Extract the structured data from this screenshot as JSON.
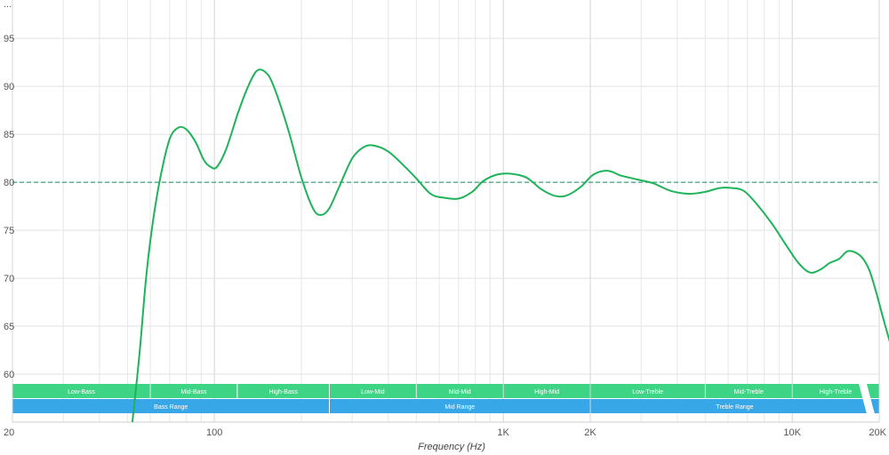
{
  "chart_data": {
    "type": "line",
    "title": "",
    "xlabel": "Frequency (Hz)",
    "ylabel": "",
    "x_scale": "log",
    "xlim": [
      20,
      20000
    ],
    "ylim": [
      55,
      99
    ],
    "grid": true,
    "x_ticks": [
      {
        "value": 20,
        "label": "20"
      },
      {
        "value": 100,
        "label": "100"
      },
      {
        "value": 1000,
        "label": "1K"
      },
      {
        "value": 2000,
        "label": "2K"
      },
      {
        "value": 10000,
        "label": "10K"
      },
      {
        "value": 20000,
        "label": "20K"
      }
    ],
    "y_ticks": [
      {
        "value": 60,
        "label": "60"
      },
      {
        "value": 65,
        "label": "65"
      },
      {
        "value": 70,
        "label": "70"
      },
      {
        "value": 75,
        "label": "75"
      },
      {
        "value": 80,
        "label": "80"
      },
      {
        "value": 85,
        "label": "85"
      },
      {
        "value": 90,
        "label": "90"
      },
      {
        "value": 95,
        "label": "95"
      }
    ],
    "y_top_label": "...",
    "reference_line": {
      "value": 80,
      "color": "#4a9a80"
    },
    "series": [
      {
        "color": "#1fb35a",
        "points": [
          [
            52,
            55
          ],
          [
            55,
            62
          ],
          [
            58,
            70
          ],
          [
            61,
            75.5
          ],
          [
            65,
            80.5
          ],
          [
            70,
            84.5
          ],
          [
            75,
            85.7
          ],
          [
            80,
            85.5
          ],
          [
            86,
            84.2
          ],
          [
            92,
            82.3
          ],
          [
            97,
            81.6
          ],
          [
            102,
            81.6
          ],
          [
            110,
            83.5
          ],
          [
            120,
            87
          ],
          [
            130,
            89.8
          ],
          [
            140,
            91.6
          ],
          [
            150,
            91.5
          ],
          [
            160,
            90.1
          ],
          [
            180,
            85.5
          ],
          [
            200,
            80.5
          ],
          [
            220,
            77.2
          ],
          [
            235,
            76.6
          ],
          [
            250,
            77.3
          ],
          [
            270,
            79.5
          ],
          [
            300,
            82.5
          ],
          [
            330,
            83.7
          ],
          [
            360,
            83.8
          ],
          [
            400,
            83.2
          ],
          [
            450,
            81.8
          ],
          [
            500,
            80.4
          ],
          [
            560,
            78.8
          ],
          [
            620,
            78.4
          ],
          [
            700,
            78.3
          ],
          [
            780,
            79
          ],
          [
            850,
            80.1
          ],
          [
            950,
            80.8
          ],
          [
            1050,
            80.9
          ],
          [
            1200,
            80.5
          ],
          [
            1350,
            79.3
          ],
          [
            1500,
            78.6
          ],
          [
            1650,
            78.6
          ],
          [
            1850,
            79.5
          ],
          [
            2050,
            80.8
          ],
          [
            2300,
            81.2
          ],
          [
            2550,
            80.7
          ],
          [
            2900,
            80.3
          ],
          [
            3300,
            79.9
          ],
          [
            3800,
            79.1
          ],
          [
            4400,
            78.8
          ],
          [
            5000,
            79
          ],
          [
            5600,
            79.4
          ],
          [
            6200,
            79.4
          ],
          [
            6800,
            79.1
          ],
          [
            7500,
            77.8
          ],
          [
            8500,
            75.7
          ],
          [
            9500,
            73.5
          ],
          [
            10500,
            71.6
          ],
          [
            11500,
            70.6
          ],
          [
            12500,
            70.9
          ],
          [
            13500,
            71.6
          ],
          [
            14500,
            72
          ],
          [
            15500,
            72.8
          ],
          [
            16500,
            72.7
          ],
          [
            17500,
            72.1
          ],
          [
            18500,
            70.8
          ],
          [
            19500,
            68.6
          ],
          [
            21000,
            65
          ],
          [
            23000,
            61
          ],
          [
            25000,
            58.2
          ]
        ]
      }
    ],
    "bands": {
      "row1": [
        {
          "label": "Low-Bass",
          "from": 20,
          "to": 60
        },
        {
          "label": "Mid-Bass",
          "from": 60,
          "to": 120
        },
        {
          "label": "High-Bass",
          "from": 120,
          "to": 250
        },
        {
          "label": "Low-Mid",
          "from": 250,
          "to": 500
        },
        {
          "label": "Mid-Mid",
          "from": 500,
          "to": 1000
        },
        {
          "label": "High-Mid",
          "from": 1000,
          "to": 2000
        },
        {
          "label": "Low-Treble",
          "from": 2000,
          "to": 5000
        },
        {
          "label": "Mid-Treble",
          "from": 5000,
          "to": 10000
        },
        {
          "label": "High-Treble",
          "from": 10000,
          "to": 20000
        }
      ],
      "row2": [
        {
          "label": "Bass Range",
          "from": 20,
          "to": 250
        },
        {
          "label": "Mid Range",
          "from": 250,
          "to": 2000
        },
        {
          "label": "Treble Range",
          "from": 2000,
          "to": 20000
        }
      ],
      "row1_color": "#3dd485",
      "row2_color": "#37a7e8"
    }
  }
}
